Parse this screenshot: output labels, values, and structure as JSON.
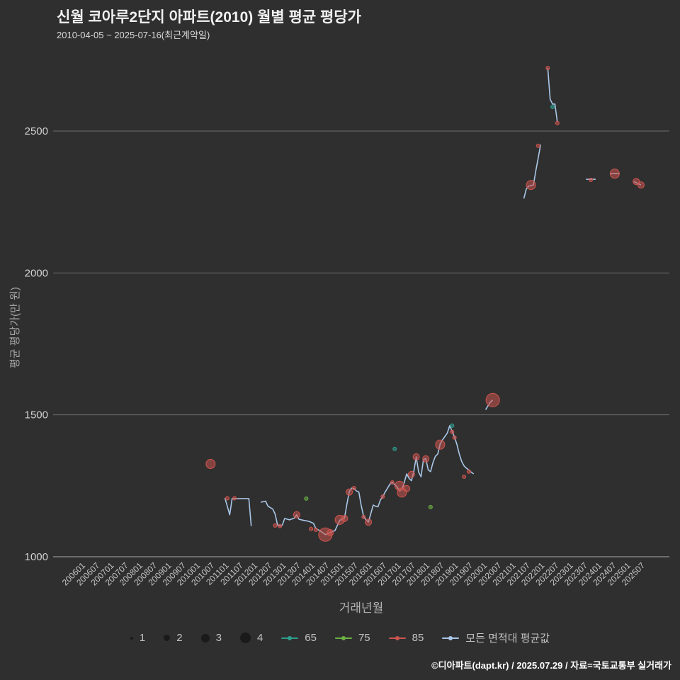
{
  "header": {
    "title": "신월 코아루2단지 아파트(2010) 월별 평균 평당가",
    "subtitle": "2010-04-05 ~ 2025-07-16(최근계약일)"
  },
  "footer": {
    "credit": "©디아파트(dapt.kr) / 2025.07.29 / 자료=국토교통부 실거래가"
  },
  "colors": {
    "background": "#2f2f2f",
    "grid": "#6e6e6e",
    "baseline": "#a8a8a8",
    "tick_text": "#c6c6c6",
    "series_65": "#2e9e8e",
    "series_75": "#6cb044",
    "series_85": "#cc544e",
    "average_line": "#a9c7e8"
  },
  "chart_data": {
    "type": "scatter",
    "title": "신월 코아루2단지 아파트(2010) 월별 평균 평당가",
    "xlabel": "거래년월",
    "ylabel": "평균 평당가(만 원)",
    "y_ticks": [
      1000,
      1500,
      2000,
      2500
    ],
    "ylim": [
      950,
      2800
    ],
    "x_ticks": [
      "200601",
      "200607",
      "200701",
      "200707",
      "200801",
      "200807",
      "200901",
      "200907",
      "201001",
      "201007",
      "201101",
      "201107",
      "201201",
      "201207",
      "201301",
      "201307",
      "201401",
      "201407",
      "201501",
      "201507",
      "201601",
      "201607",
      "201701",
      "201707",
      "201801",
      "201807",
      "201901",
      "201907",
      "202001",
      "202007",
      "202101",
      "202107",
      "202201",
      "202207",
      "202301",
      "202307",
      "202401",
      "202407",
      "202501",
      "202507"
    ],
    "size_legend": [
      1,
      2,
      3,
      4
    ],
    "point_format": "[yyyymm, price_per_pyeong_10k_won, bubble_size]",
    "average_line": {
      "name": "모든 면적대 평균값",
      "color": "#a9c7e8",
      "segments": [
        [
          [
            201101,
            1207
          ],
          [
            201103,
            1148
          ],
          [
            201104,
            1205
          ],
          [
            201111,
            1205
          ],
          [
            201112,
            1108
          ]
        ],
        [
          [
            201204,
            1192
          ],
          [
            201206,
            1196
          ],
          [
            201207,
            1178
          ],
          [
            201209,
            1168
          ],
          [
            201210,
            1150
          ],
          [
            201211,
            1112
          ],
          [
            201212,
            1108
          ],
          [
            201301,
            1112
          ],
          [
            201302,
            1135
          ],
          [
            201304,
            1130
          ],
          [
            201306,
            1136
          ],
          [
            201307,
            1148
          ],
          [
            201308,
            1132
          ],
          [
            201310,
            1128
          ],
          [
            201312,
            1125
          ],
          [
            201402,
            1118
          ],
          [
            201403,
            1100
          ],
          [
            201405,
            1090
          ],
          [
            201407,
            1078
          ],
          [
            201409,
            1085
          ],
          [
            201411,
            1092
          ],
          [
            201412,
            1110
          ],
          [
            201501,
            1128
          ],
          [
            201502,
            1133
          ],
          [
            201503,
            1136
          ],
          [
            201504,
            1185
          ],
          [
            201505,
            1230
          ],
          [
            201506,
            1242
          ],
          [
            201507,
            1240
          ],
          [
            201508,
            1232
          ],
          [
            201509,
            1228
          ],
          [
            201510,
            1180
          ],
          [
            201511,
            1142
          ],
          [
            201512,
            1130
          ],
          [
            201601,
            1122
          ],
          [
            201602,
            1152
          ],
          [
            201603,
            1182
          ],
          [
            201604,
            1178
          ],
          [
            201605,
            1176
          ],
          [
            201606,
            1200
          ],
          [
            201607,
            1212
          ],
          [
            201608,
            1228
          ],
          [
            201609,
            1242
          ],
          [
            201610,
            1256
          ],
          [
            201611,
            1262
          ],
          [
            201612,
            1254
          ],
          [
            201701,
            1246
          ],
          [
            201702,
            1232
          ],
          [
            201703,
            1236
          ],
          [
            201704,
            1262
          ],
          [
            201705,
            1292
          ],
          [
            201706,
            1276
          ],
          [
            201707,
            1268
          ],
          [
            201708,
            1302
          ],
          [
            201709,
            1352
          ],
          [
            201710,
            1298
          ],
          [
            201711,
            1282
          ],
          [
            201712,
            1342
          ],
          [
            201801,
            1346
          ],
          [
            201802,
            1306
          ],
          [
            201803,
            1300
          ],
          [
            201804,
            1332
          ],
          [
            201805,
            1354
          ],
          [
            201806,
            1362
          ],
          [
            201807,
            1398
          ],
          [
            201808,
            1412
          ],
          [
            201809,
            1424
          ],
          [
            201810,
            1436
          ],
          [
            201811,
            1462
          ],
          [
            201812,
            1442
          ],
          [
            201901,
            1422
          ],
          [
            201902,
            1396
          ],
          [
            201903,
            1362
          ],
          [
            201904,
            1336
          ],
          [
            201905,
            1320
          ],
          [
            201906,
            1312
          ],
          [
            201907,
            1306
          ],
          [
            201908,
            1298
          ],
          [
            201909,
            1292
          ]
        ],
        [
          [
            202002,
            1518
          ],
          [
            202004,
            1545
          ],
          [
            202005,
            1552
          ]
        ],
        [
          [
            202106,
            2262
          ],
          [
            202107,
            2295
          ],
          [
            202108,
            2306
          ],
          [
            202110,
            2310
          ],
          [
            202111,
            2360
          ],
          [
            202112,
            2405
          ],
          [
            202201,
            2452
          ]
        ],
        [
          [
            202204,
            2722
          ],
          [
            202205,
            2612
          ],
          [
            202206,
            2595
          ],
          [
            202207,
            2595
          ],
          [
            202208,
            2532
          ]
        ],
        [
          [
            202308,
            2330
          ],
          [
            202312,
            2330
          ]
        ],
        [
          [
            202406,
            2350
          ],
          [
            202410,
            2350
          ]
        ],
        [
          [
            202504,
            2322
          ],
          [
            202507,
            2310
          ]
        ]
      ]
    },
    "series": [
      {
        "name": "65",
        "color": "#2e9e8e",
        "points": [
          [
            201612,
            1380,
            1
          ],
          [
            201812,
            1462,
            1
          ],
          [
            202206,
            2585,
            1
          ]
        ]
      },
      {
        "name": "75",
        "color": "#6cb044",
        "points": [
          [
            201311,
            1205,
            1
          ],
          [
            201803,
            1175,
            1
          ]
        ]
      },
      {
        "name": "85",
        "color": "#cc544e",
        "points": [
          [
            201007,
            1327,
            3
          ],
          [
            201102,
            1206,
            1
          ],
          [
            201105,
            1206,
            1
          ],
          [
            201210,
            1110,
            1
          ],
          [
            201212,
            1108,
            1
          ],
          [
            201307,
            1148,
            2
          ],
          [
            201401,
            1098,
            1
          ],
          [
            201403,
            1095,
            1
          ],
          [
            201407,
            1078,
            4
          ],
          [
            201409,
            1085,
            2
          ],
          [
            201501,
            1130,
            3
          ],
          [
            201503,
            1135,
            2
          ],
          [
            201505,
            1228,
            2
          ],
          [
            201507,
            1242,
            1
          ],
          [
            201511,
            1140,
            1
          ],
          [
            201601,
            1122,
            2
          ],
          [
            201607,
            1212,
            1
          ],
          [
            201611,
            1262,
            1
          ],
          [
            201702,
            1250,
            3
          ],
          [
            201703,
            1226,
            3
          ],
          [
            201705,
            1240,
            2
          ],
          [
            201707,
            1290,
            2
          ],
          [
            201709,
            1352,
            2
          ],
          [
            201801,
            1345,
            2
          ],
          [
            201807,
            1395,
            3
          ],
          [
            201812,
            1440,
            1
          ],
          [
            201901,
            1420,
            1
          ],
          [
            201905,
            1282,
            1
          ],
          [
            201907,
            1300,
            1
          ],
          [
            202005,
            1552,
            4
          ],
          [
            202109,
            2310,
            3
          ],
          [
            202112,
            2448,
            1
          ],
          [
            202204,
            2722,
            1
          ],
          [
            202208,
            2528,
            1
          ],
          [
            202310,
            2328,
            1
          ],
          [
            202408,
            2350,
            3
          ],
          [
            202505,
            2322,
            2
          ],
          [
            202507,
            2310,
            2
          ]
        ]
      }
    ]
  }
}
